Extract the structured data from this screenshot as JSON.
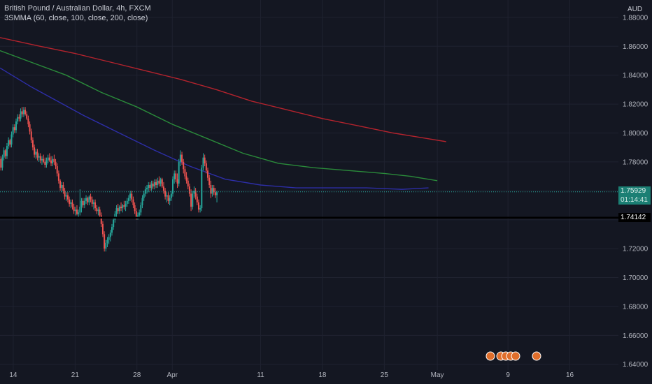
{
  "header": {
    "title": "British Pound / Australian Dollar, 4h, FXCM",
    "indicator": "3SMMA (60, close, 100, close, 200, close)"
  },
  "price_axis": {
    "currency": "AUD",
    "last_price": "1.75929",
    "countdown": "01:14:41",
    "level_line_price": "1.74142"
  },
  "colors": {
    "background": "#141722",
    "up": "#26a69a",
    "down": "#ef5350",
    "sma60": "#2d2ea8",
    "sma100": "#2a8a3a",
    "sma200": "#b3232d",
    "level_line": "#000000",
    "last_price_line": "#26a69a"
  },
  "chart_data": {
    "type": "candlestick",
    "title": "British Pound / Australian Dollar, 4h, FXCM",
    "ylim": [
      1.636,
      1.892
    ],
    "yticks": [
      1.64,
      1.66,
      1.68,
      1.7,
      1.72,
      1.74,
      1.76,
      1.78,
      1.8,
      1.82,
      1.84,
      1.86,
      1.88
    ],
    "xtick_labels": [
      {
        "label": "14",
        "pos": 0.0
      },
      {
        "label": "21",
        "pos": 7.0
      },
      {
        "label": "28",
        "pos": 14.0
      },
      {
        "label": "Apr",
        "pos": 18.0
      },
      {
        "label": "11",
        "pos": 28.0
      },
      {
        "label": "18",
        "pos": 35.0
      },
      {
        "label": "25",
        "pos": 42.0
      },
      {
        "label": "May",
        "pos": 48.0
      },
      {
        "label": "9",
        "pos": 56.0
      },
      {
        "label": "16",
        "pos": 63.0
      }
    ],
    "xlim": [
      -1.5,
      68.5
    ],
    "series": [
      {
        "name": "SMA 60",
        "color": "#2d2ea8",
        "points": [
          [
            -1.5,
            1.845
          ],
          [
            2,
            1.832
          ],
          [
            5,
            1.822
          ],
          [
            8,
            1.812
          ],
          [
            12,
            1.8
          ],
          [
            16,
            1.788
          ],
          [
            20,
            1.777
          ],
          [
            24,
            1.768
          ],
          [
            28,
            1.764
          ],
          [
            32,
            1.762
          ],
          [
            36,
            1.762
          ],
          [
            40,
            1.762
          ],
          [
            44,
            1.761
          ],
          [
            47,
            1.762
          ]
        ]
      },
      {
        "name": "SMA 100",
        "color": "#2a8a3a",
        "points": [
          [
            -1.5,
            1.857
          ],
          [
            2,
            1.849
          ],
          [
            6,
            1.84
          ],
          [
            10,
            1.828
          ],
          [
            14,
            1.818
          ],
          [
            18,
            1.806
          ],
          [
            22,
            1.796
          ],
          [
            26,
            1.786
          ],
          [
            30,
            1.779
          ],
          [
            34,
            1.776
          ],
          [
            38,
            1.774
          ],
          [
            42,
            1.772
          ],
          [
            45,
            1.77
          ],
          [
            48,
            1.767
          ]
        ]
      },
      {
        "name": "SMA 200",
        "color": "#b3232d",
        "points": [
          [
            -1.5,
            1.866
          ],
          [
            3,
            1.86
          ],
          [
            7,
            1.855
          ],
          [
            11,
            1.849
          ],
          [
            15,
            1.843
          ],
          [
            19,
            1.837
          ],
          [
            23,
            1.83
          ],
          [
            27,
            1.822
          ],
          [
            31,
            1.816
          ],
          [
            35,
            1.81
          ],
          [
            39,
            1.805
          ],
          [
            43,
            1.8
          ],
          [
            46,
            1.797
          ],
          [
            49,
            1.794
          ]
        ]
      }
    ],
    "candles_x_start": -1.4,
    "candles_x_step": 0.1722,
    "candles": [
      [
        1.782,
        1.784,
        1.774,
        1.776
      ],
      [
        1.776,
        1.785,
        1.774,
        1.783
      ],
      [
        1.783,
        1.79,
        1.781,
        1.788
      ],
      [
        1.788,
        1.789,
        1.782,
        1.784
      ],
      [
        1.784,
        1.793,
        1.782,
        1.791
      ],
      [
        1.791,
        1.797,
        1.789,
        1.795
      ],
      [
        1.795,
        1.796,
        1.79,
        1.792
      ],
      [
        1.792,
        1.801,
        1.79,
        1.799
      ],
      [
        1.799,
        1.806,
        1.797,
        1.804
      ],
      [
        1.804,
        1.806,
        1.8,
        1.802
      ],
      [
        1.802,
        1.81,
        1.8,
        1.808
      ],
      [
        1.808,
        1.813,
        1.806,
        1.811
      ],
      [
        1.811,
        1.813,
        1.808,
        1.81
      ],
      [
        1.81,
        1.817,
        1.808,
        1.815
      ],
      [
        1.815,
        1.818,
        1.811,
        1.813
      ],
      [
        1.813,
        1.818,
        1.811,
        1.816
      ],
      [
        1.816,
        1.818,
        1.812,
        1.813
      ],
      [
        1.813,
        1.815,
        1.809,
        1.81
      ],
      [
        1.81,
        1.812,
        1.804,
        1.806
      ],
      [
        1.806,
        1.808,
        1.799,
        1.801
      ],
      [
        1.801,
        1.803,
        1.793,
        1.795
      ],
      [
        1.795,
        1.797,
        1.788,
        1.79
      ],
      [
        1.79,
        1.792,
        1.783,
        1.785
      ],
      [
        1.785,
        1.789,
        1.782,
        1.787
      ],
      [
        1.787,
        1.789,
        1.781,
        1.783
      ],
      [
        1.783,
        1.786,
        1.78,
        1.784
      ],
      [
        1.784,
        1.786,
        1.779,
        1.781
      ],
      [
        1.781,
        1.784,
        1.778,
        1.782
      ],
      [
        1.782,
        1.785,
        1.779,
        1.78
      ],
      [
        1.78,
        1.783,
        1.776,
        1.778
      ],
      [
        1.778,
        1.783,
        1.776,
        1.781
      ],
      [
        1.781,
        1.785,
        1.779,
        1.783
      ],
      [
        1.783,
        1.786,
        1.78,
        1.781
      ],
      [
        1.781,
        1.784,
        1.777,
        1.779
      ],
      [
        1.779,
        1.784,
        1.777,
        1.782
      ],
      [
        1.782,
        1.785,
        1.778,
        1.78
      ],
      [
        1.78,
        1.782,
        1.775,
        1.777
      ],
      [
        1.777,
        1.779,
        1.77,
        1.772
      ],
      [
        1.772,
        1.774,
        1.765,
        1.767
      ],
      [
        1.767,
        1.768,
        1.76,
        1.762
      ],
      [
        1.762,
        1.766,
        1.759,
        1.764
      ],
      [
        1.764,
        1.766,
        1.758,
        1.76
      ],
      [
        1.76,
        1.762,
        1.754,
        1.756
      ],
      [
        1.756,
        1.759,
        1.753,
        1.757
      ],
      [
        1.757,
        1.759,
        1.752,
        1.754
      ],
      [
        1.754,
        1.756,
        1.749,
        1.751
      ],
      [
        1.751,
        1.754,
        1.748,
        1.752
      ],
      [
        1.752,
        1.754,
        1.747,
        1.749
      ],
      [
        1.749,
        1.751,
        1.744,
        1.746
      ],
      [
        1.746,
        1.749,
        1.743,
        1.747
      ],
      [
        1.747,
        1.75,
        1.743,
        1.744
      ],
      [
        1.744,
        1.747,
        1.742,
        1.745
      ],
      [
        1.745,
        1.761,
        1.743,
        1.749
      ],
      [
        1.749,
        1.755,
        1.745,
        1.753
      ],
      [
        1.753,
        1.755,
        1.748,
        1.75
      ],
      [
        1.75,
        1.755,
        1.748,
        1.753
      ],
      [
        1.753,
        1.757,
        1.751,
        1.755
      ],
      [
        1.755,
        1.756,
        1.75,
        1.752
      ],
      [
        1.752,
        1.757,
        1.75,
        1.756
      ],
      [
        1.756,
        1.758,
        1.752,
        1.754
      ],
      [
        1.754,
        1.756,
        1.749,
        1.751
      ],
      [
        1.751,
        1.754,
        1.747,
        1.752
      ],
      [
        1.752,
        1.754,
        1.746,
        1.748
      ],
      [
        1.748,
        1.75,
        1.744,
        1.746
      ],
      [
        1.746,
        1.749,
        1.743,
        1.747
      ],
      [
        1.747,
        1.749,
        1.741,
        1.743
      ],
      [
        1.743,
        1.745,
        1.735,
        1.737
      ],
      [
        1.737,
        1.739,
        1.728,
        1.73
      ],
      [
        1.73,
        1.732,
        1.718,
        1.72
      ],
      [
        1.72,
        1.726,
        1.718,
        1.724
      ],
      [
        1.724,
        1.728,
        1.721,
        1.726
      ],
      [
        1.726,
        1.73,
        1.723,
        1.728
      ],
      [
        1.728,
        1.733,
        1.725,
        1.731
      ],
      [
        1.731,
        1.737,
        1.729,
        1.735
      ],
      [
        1.735,
        1.742,
        1.733,
        1.74
      ],
      [
        1.74,
        1.746,
        1.738,
        1.744
      ],
      [
        1.744,
        1.75,
        1.742,
        1.748
      ],
      [
        1.748,
        1.751,
        1.744,
        1.746
      ],
      [
        1.746,
        1.75,
        1.744,
        1.749
      ],
      [
        1.749,
        1.752,
        1.746,
        1.748
      ],
      [
        1.748,
        1.751,
        1.745,
        1.75
      ],
      [
        1.75,
        1.753,
        1.747,
        1.749
      ],
      [
        1.749,
        1.753,
        1.746,
        1.751
      ],
      [
        1.751,
        1.755,
        1.749,
        1.753
      ],
      [
        1.753,
        1.757,
        1.751,
        1.755
      ],
      [
        1.755,
        1.76,
        1.753,
        1.758
      ],
      [
        1.758,
        1.76,
        1.752,
        1.754
      ],
      [
        1.754,
        1.756,
        1.748,
        1.75
      ],
      [
        1.75,
        1.752,
        1.744,
        1.746
      ],
      [
        1.746,
        1.748,
        1.74,
        1.742
      ],
      [
        1.742,
        1.745,
        1.74,
        1.743
      ],
      [
        1.743,
        1.747,
        1.741,
        1.745
      ],
      [
        1.745,
        1.752,
        1.743,
        1.75
      ],
      [
        1.75,
        1.757,
        1.748,
        1.755
      ],
      [
        1.755,
        1.76,
        1.753,
        1.758
      ],
      [
        1.758,
        1.763,
        1.756,
        1.761
      ],
      [
        1.761,
        1.764,
        1.758,
        1.762
      ],
      [
        1.762,
        1.766,
        1.759,
        1.764
      ],
      [
        1.764,
        1.766,
        1.76,
        1.762
      ],
      [
        1.762,
        1.767,
        1.76,
        1.765
      ],
      [
        1.765,
        1.767,
        1.761,
        1.763
      ],
      [
        1.763,
        1.768,
        1.761,
        1.766
      ],
      [
        1.766,
        1.768,
        1.762,
        1.764
      ],
      [
        1.764,
        1.769,
        1.762,
        1.767
      ],
      [
        1.767,
        1.77,
        1.763,
        1.765
      ],
      [
        1.765,
        1.769,
        1.763,
        1.768
      ],
      [
        1.768,
        1.769,
        1.762,
        1.763
      ],
      [
        1.763,
        1.766,
        1.758,
        1.76
      ],
      [
        1.76,
        1.762,
        1.754,
        1.756
      ],
      [
        1.756,
        1.759,
        1.752,
        1.757
      ],
      [
        1.757,
        1.759,
        1.751,
        1.753
      ],
      [
        1.753,
        1.757,
        1.75,
        1.755
      ],
      [
        1.755,
        1.76,
        1.753,
        1.758
      ],
      [
        1.758,
        1.77,
        1.756,
        1.768
      ],
      [
        1.768,
        1.774,
        1.765,
        1.772
      ],
      [
        1.772,
        1.774,
        1.766,
        1.768
      ],
      [
        1.768,
        1.772,
        1.762,
        1.765
      ],
      [
        1.765,
        1.782,
        1.763,
        1.78
      ],
      [
        1.78,
        1.788,
        1.777,
        1.785
      ],
      [
        1.785,
        1.787,
        1.778,
        1.78
      ],
      [
        1.78,
        1.782,
        1.772,
        1.775
      ],
      [
        1.775,
        1.777,
        1.768,
        1.77
      ],
      [
        1.77,
        1.773,
        1.765,
        1.767
      ],
      [
        1.767,
        1.769,
        1.761,
        1.763
      ],
      [
        1.763,
        1.765,
        1.756,
        1.758
      ],
      [
        1.758,
        1.761,
        1.746,
        1.749
      ],
      [
        1.749,
        1.76,
        1.747,
        1.758
      ],
      [
        1.758,
        1.763,
        1.755,
        1.76
      ],
      [
        1.76,
        1.762,
        1.754,
        1.756
      ],
      [
        1.756,
        1.758,
        1.75,
        1.752
      ],
      [
        1.752,
        1.754,
        1.745,
        1.747
      ],
      [
        1.747,
        1.75,
        1.745,
        1.748
      ],
      [
        1.748,
        1.778,
        1.746,
        1.776
      ],
      [
        1.776,
        1.786,
        1.774,
        1.783
      ],
      [
        1.783,
        1.785,
        1.777,
        1.779
      ],
      [
        1.779,
        1.781,
        1.772,
        1.774
      ],
      [
        1.774,
        1.776,
        1.767,
        1.769
      ],
      [
        1.769,
        1.771,
        1.762,
        1.764
      ],
      [
        1.764,
        1.767,
        1.755,
        1.758
      ],
      [
        1.758,
        1.764,
        1.756,
        1.762
      ],
      [
        1.762,
        1.764,
        1.757,
        1.759
      ],
      [
        1.759,
        1.762,
        1.755,
        1.757
      ],
      [
        1.757,
        1.76,
        1.752,
        1.759
      ]
    ]
  }
}
